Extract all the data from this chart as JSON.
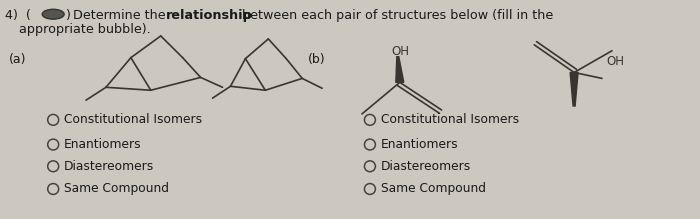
{
  "background_color": "#ccc8c0",
  "text_color": "#1a1a1a",
  "mol_color": "#3a3530",
  "label_a": "(a)",
  "label_b": "(b)",
  "options": [
    "Constitutional Isomers",
    "Enantiomers",
    "Diastereomers",
    "Same Compound"
  ],
  "font_size_title": 9.2,
  "font_size_labels": 9.0,
  "font_size_options": 8.8,
  "lw": 1.2
}
